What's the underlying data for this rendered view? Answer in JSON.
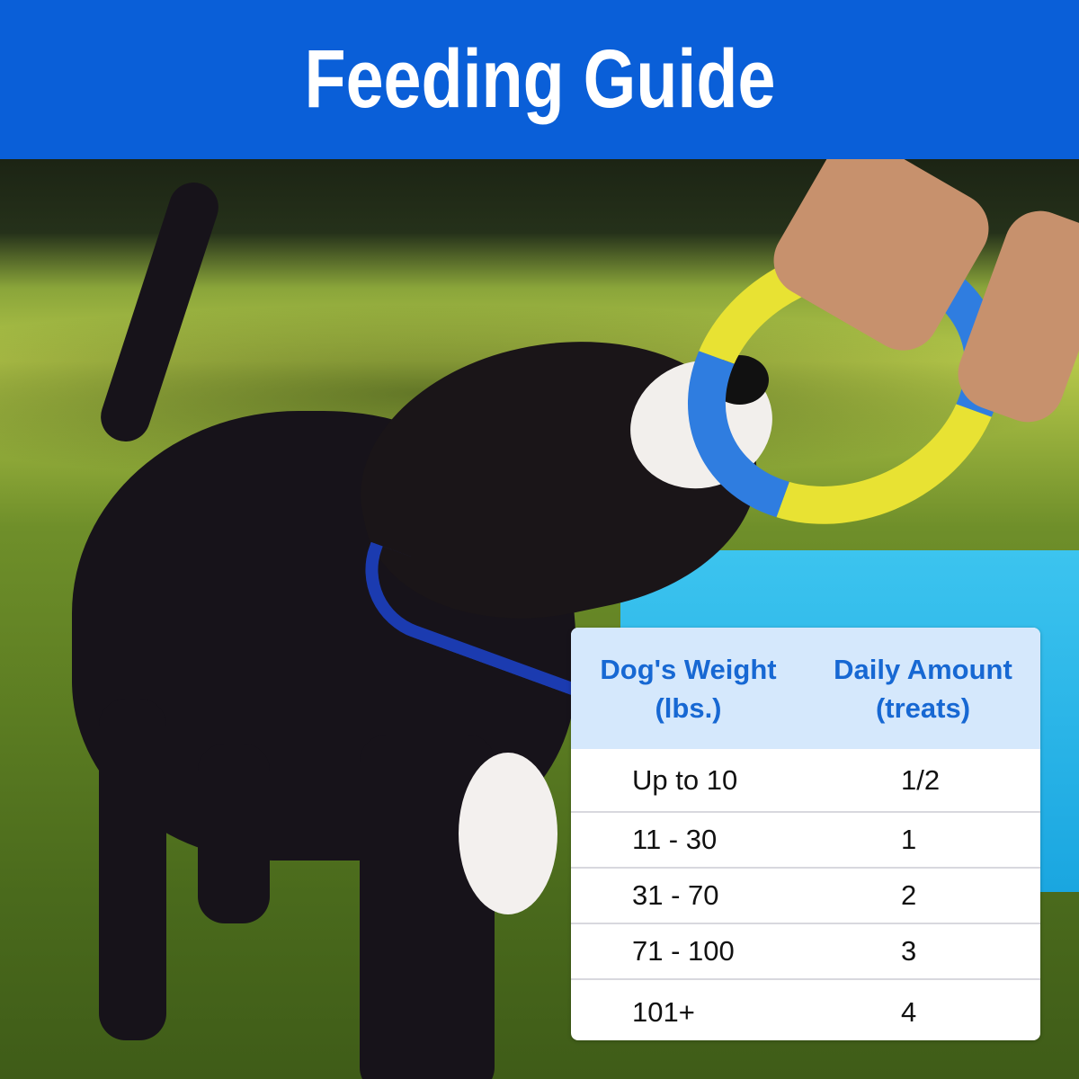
{
  "banner": {
    "title": "Feeding Guide",
    "color": "#0a5fd8"
  },
  "photo": {
    "subject": "dog-tugging-toy-image"
  },
  "table": {
    "header_color": "#1768d3",
    "header_bg": "#d5e8fc",
    "headers": [
      "Dog's Weight\n(lbs.)",
      "Daily Amount\n(treats)"
    ],
    "rows": [
      {
        "weight": "Up to 10",
        "amount": "1/2"
      },
      {
        "weight": "11 - 30",
        "amount": "1"
      },
      {
        "weight": "31 - 70",
        "amount": "2"
      },
      {
        "weight": "71 - 100",
        "amount": "3"
      },
      {
        "weight": "101+",
        "amount": "4"
      }
    ]
  }
}
